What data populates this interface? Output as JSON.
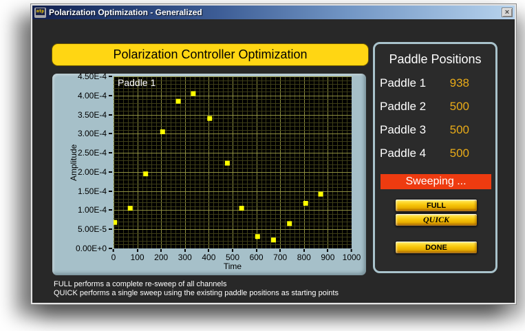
{
  "window": {
    "title": "Polarization Optimization - Generalized",
    "icon_text": "mtp",
    "close_glyph": "×"
  },
  "banner": {
    "title": "Polarization Controller Optimization"
  },
  "chart_data": {
    "type": "scatter",
    "plot_label": "Paddle 1",
    "xlabel": "Time",
    "ylabel": "Amplitude",
    "xlim": [
      0,
      1000
    ],
    "ylim": [
      0,
      0.00045
    ],
    "grid": {
      "x_minor_step": 20,
      "x_major_step": 100,
      "y_minor_step": 1e-05,
      "y_major_step": 5e-05
    },
    "x": [
      5,
      70,
      135,
      206,
      272,
      335,
      404,
      478,
      538,
      605,
      672,
      739,
      807,
      870
    ],
    "y": [
      6.8e-05,
      0.000105,
      0.000195,
      0.000305,
      0.000385,
      0.000405,
      0.00034,
      0.000223,
      0.000105,
      3.1e-05,
      2.2e-05,
      6.5e-05,
      0.000118,
      0.000142
    ],
    "x_ticks": [
      {
        "v": 0,
        "label": "0"
      },
      {
        "v": 100,
        "label": "100"
      },
      {
        "v": 200,
        "label": "200"
      },
      {
        "v": 300,
        "label": "300"
      },
      {
        "v": 400,
        "label": "400"
      },
      {
        "v": 500,
        "label": "500"
      },
      {
        "v": 600,
        "label": "600"
      },
      {
        "v": 700,
        "label": "700"
      },
      {
        "v": 800,
        "label": "800"
      },
      {
        "v": 900,
        "label": "900"
      },
      {
        "v": 1000,
        "label": "1000"
      }
    ],
    "y_ticks": [
      {
        "v": 0,
        "label": "0.00E+0"
      },
      {
        "v": 5e-05,
        "label": "5.00E-5"
      },
      {
        "v": 0.0001,
        "label": "1.00E-4"
      },
      {
        "v": 0.00015,
        "label": "1.50E-4"
      },
      {
        "v": 0.0002,
        "label": "2.00E-4"
      },
      {
        "v": 0.00025,
        "label": "2.50E-4"
      },
      {
        "v": 0.0003,
        "label": "3.00E-4"
      },
      {
        "v": 0.00035,
        "label": "3.50E-4"
      },
      {
        "v": 0.0004,
        "label": "4.00E-4"
      },
      {
        "v": 0.00045,
        "label": "4.50E-4"
      }
    ],
    "point_color": "#ffff00",
    "grid_major_color": "#8f9040",
    "grid_minor_color": "#3e3e18",
    "plot_bg": "#000000",
    "legend_position": "top-left"
  },
  "paddle_panel": {
    "title": "Paddle Positions",
    "rows": [
      {
        "label": "Paddle 1",
        "value": "938"
      },
      {
        "label": "Paddle 2",
        "value": "500"
      },
      {
        "label": "Paddle 3",
        "value": "500"
      },
      {
        "label": "Paddle 4",
        "value": "500"
      }
    ],
    "status": "Sweeping ...",
    "buttons": {
      "full": "FULL",
      "quick": "QUICK",
      "done": "DONE"
    }
  },
  "footer": {
    "line1": "FULL performs a complete re-sweep of all channels",
    "line2": "QUICK performs a single sweep using the existing paddle positions as starting points"
  },
  "colors": {
    "banner_yellow": "#ffd613",
    "panel_blue": "#a6c0c9",
    "value_gold": "#e9ab18",
    "status_red": "#ee3b10",
    "content_bg": "#282828",
    "titlebar_left": "#121f4d",
    "titlebar_right": "#b7d3ed"
  }
}
